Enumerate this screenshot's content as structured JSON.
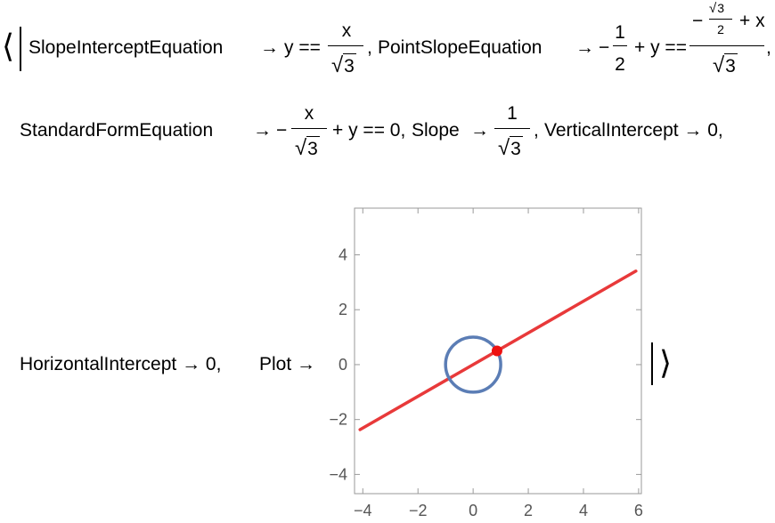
{
  "association": {
    "open": "⟨",
    "close": "⟩"
  },
  "row1": {
    "slope_intercept_key": "SlopeInterceptEquation",
    "arrow": "→",
    "slope_intercept_lhs": "y ==",
    "slope_intercept_num": "x",
    "sqrt_arg": "3",
    "sep": ",",
    "point_slope_key": "PointSlopeEquation",
    "point_slope_minus": "−",
    "point_slope_half_num": "1",
    "point_slope_half_den": "2",
    "point_slope_mid": "+ y ==",
    "point_slope_inner_minus": "−",
    "point_slope_inner_den": "2",
    "point_slope_inner_plus_x": "+ x",
    "point_slope_den_sqrt": "3",
    "trailing_comma": ","
  },
  "row2": {
    "standard_form_key": "StandardFormEquation",
    "arrow": "→",
    "standard_minus": "−",
    "standard_num": "x",
    "sqrt_arg": "3",
    "standard_rest": "+ y == 0,",
    "slope_key": "Slope",
    "slope_num": "1",
    "slope_sqrt": "3",
    "slope_sep": ",",
    "vertical_intercept_text": "VerticalIntercept → 0,"
  },
  "row3": {
    "horizontal_intercept_text": "HorizontalIntercept → 0,",
    "plot_key": "Plot →"
  },
  "chart_data": {
    "type": "line",
    "title": "",
    "xlabel": "",
    "ylabel": "",
    "xlim": [
      -4.3,
      6.1
    ],
    "ylim": [
      -4.7,
      5.7
    ],
    "x_ticks": [
      "−4",
      "−2",
      "0",
      "2",
      "4",
      "6"
    ],
    "y_ticks": [
      "4",
      "2",
      "0",
      "−2",
      "−4"
    ],
    "x_tick_values": [
      -4,
      -2,
      0,
      2,
      4,
      6
    ],
    "y_tick_values": [
      4,
      2,
      0,
      -2,
      -4
    ],
    "line": {
      "slope": 0.57735,
      "intercept": 0,
      "x_range": [
        -4.1,
        5.9
      ],
      "color": "#e8393a"
    },
    "circle": {
      "center": [
        0,
        0
      ],
      "radius": 1,
      "color": "#5b7db5"
    },
    "point": {
      "x": 0.866,
      "y": 0.5,
      "color": "#ee1111"
    },
    "grid": false
  }
}
